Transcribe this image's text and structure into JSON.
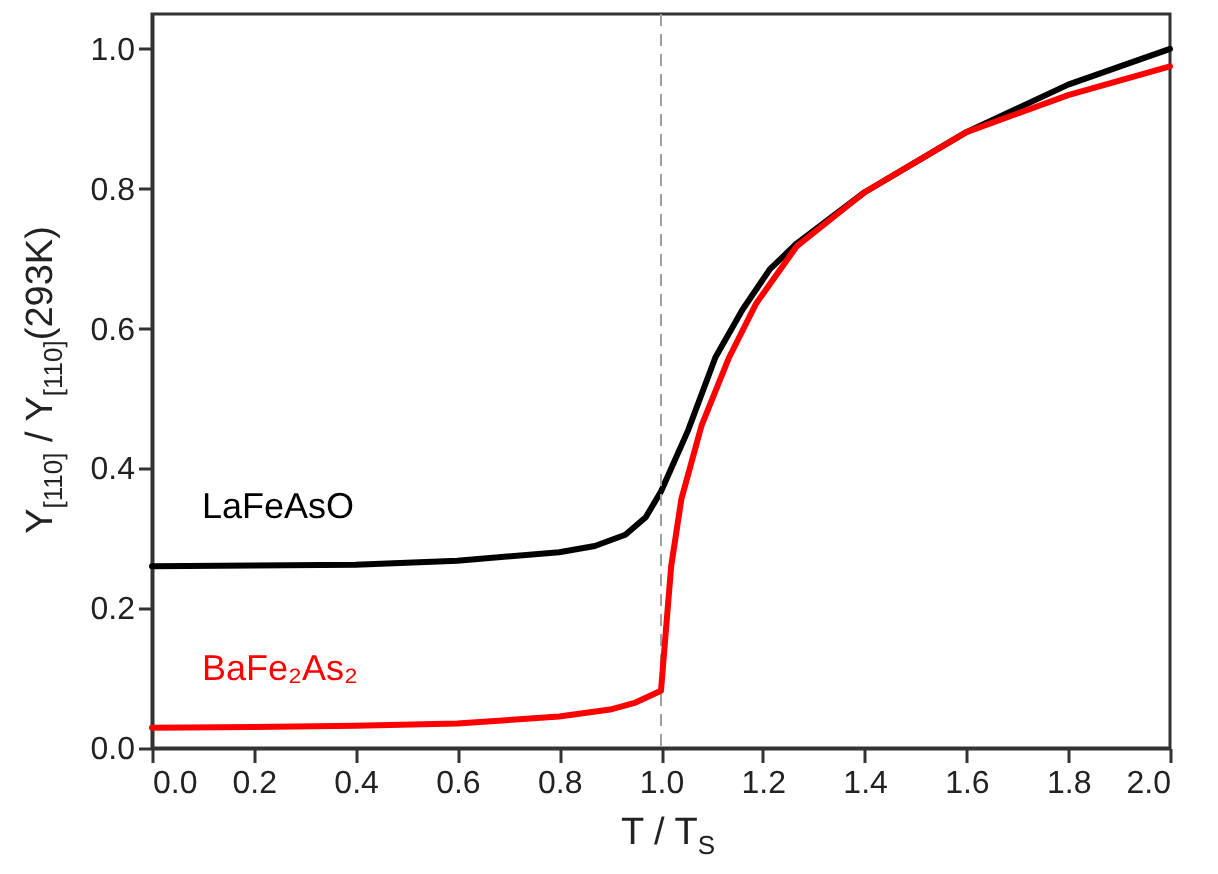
{
  "chart_data": {
    "type": "line",
    "xlabel": "T / T$_{S}$",
    "ylabel": "Y$_{[110]}$ / Y$_{[110]}$(293K)",
    "xlim": [
      0,
      2
    ],
    "ylim": [
      0,
      1.05
    ],
    "xticks": [
      {
        "value": 0,
        "label": "0.0"
      },
      0.2,
      0.4,
      0.6,
      0.8,
      {
        "value": 1,
        "label": "1.0"
      },
      1.2,
      1.4,
      1.6,
      1.8,
      {
        "value": 2,
        "label": "2.0"
      }
    ],
    "yticks": [
      {
        "value": 0,
        "label": "0.0"
      },
      0.2,
      0.4,
      0.6,
      0.8,
      {
        "value": 1,
        "label": "1.0"
      }
    ],
    "grid": false,
    "marker": "none",
    "line_style": "solid",
    "ref_lines": [
      {
        "axis": "x",
        "value": 1,
        "color": "#a0a0a0",
        "line_style": "dashed"
      }
    ],
    "series": [
      {
        "name": "LaFeAsO",
        "color": "#000000",
        "x": [
          0,
          0.2,
          0.4,
          0.6,
          0.8,
          0.87,
          0.93,
          0.97,
          1.0,
          1.053,
          1.107,
          1.16,
          1.214,
          1.267,
          1.4,
          1.6,
          1.8,
          2.0
        ],
        "values": [
          0.26,
          0.261,
          0.262,
          0.268,
          0.28,
          0.289,
          0.305,
          0.33,
          0.367,
          0.454,
          0.559,
          0.627,
          0.685,
          0.722,
          0.795,
          0.881,
          0.949,
          1.0
        ]
      },
      {
        "name": "BaFe₂As₂",
        "color": "#ff0000",
        "x": [
          0,
          0.2,
          0.4,
          0.6,
          0.8,
          0.9,
          0.95,
          1.0,
          1.007,
          1.02,
          1.04,
          1.08,
          1.134,
          1.187,
          1.267,
          1.4,
          1.6,
          1.8,
          2.0
        ],
        "values": [
          0.029,
          0.03,
          0.032,
          0.035,
          0.045,
          0.055,
          0.065,
          0.082,
          0.145,
          0.26,
          0.356,
          0.462,
          0.559,
          0.636,
          0.718,
          0.795,
          0.881,
          0.934,
          0.975
        ]
      }
    ]
  }
}
